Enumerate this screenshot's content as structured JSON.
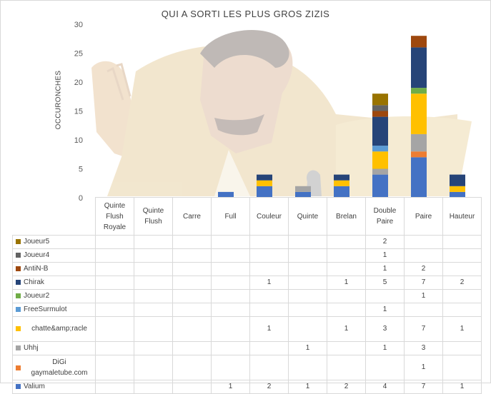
{
  "chart_data": {
    "type": "bar",
    "stacked": true,
    "title": "QUI A SORTI LES PLUS GROS ZIZIS",
    "ylabel": "OCCURONCHES",
    "ylim": [
      0,
      30
    ],
    "yticks": [
      0,
      5,
      10,
      15,
      20,
      25,
      30
    ],
    "grid": false,
    "legend": "data-table",
    "categories": [
      "Quinte Flush Royale",
      "Quinte Flush",
      "Carre",
      "Full",
      "Couleur",
      "Quinte",
      "Brelan",
      "Double Paire",
      "Paire",
      "Hauteur"
    ],
    "series": [
      {
        "name": "Valium",
        "color": "#4472c4",
        "values": [
          null,
          null,
          null,
          1,
          2,
          1,
          2,
          4,
          7,
          1
        ]
      },
      {
        "name": "DiGi gaymaletube.com",
        "color": "#ed7d31",
        "values": [
          null,
          null,
          null,
          null,
          null,
          null,
          null,
          null,
          1,
          null
        ]
      },
      {
        "name": "Uhhj",
        "color": "#a5a5a5",
        "values": [
          null,
          null,
          null,
          null,
          null,
          1,
          null,
          1,
          3,
          null
        ]
      },
      {
        "name": "chatte&amp;racle",
        "color": "#ffc000",
        "values": [
          null,
          null,
          null,
          null,
          1,
          null,
          1,
          3,
          7,
          1
        ]
      },
      {
        "name": "FreeSurmulot",
        "color": "#5b9bd5",
        "values": [
          null,
          null,
          null,
          null,
          null,
          null,
          null,
          1,
          null,
          null
        ]
      },
      {
        "name": "Joueur2",
        "color": "#70ad47",
        "values": [
          null,
          null,
          null,
          null,
          null,
          null,
          null,
          null,
          1,
          null
        ]
      },
      {
        "name": "Chirak",
        "color": "#264478",
        "values": [
          null,
          null,
          null,
          null,
          1,
          null,
          1,
          5,
          7,
          2
        ]
      },
      {
        "name": "AntiN-B",
        "color": "#9e480e",
        "values": [
          null,
          null,
          null,
          null,
          null,
          null,
          null,
          1,
          2,
          null
        ]
      },
      {
        "name": "Joueur4",
        "color": "#636363",
        "values": [
          null,
          null,
          null,
          null,
          null,
          null,
          null,
          1,
          null,
          null
        ]
      },
      {
        "name": "Joueur5",
        "color": "#997300",
        "values": [
          null,
          null,
          null,
          null,
          null,
          null,
          null,
          2,
          null,
          null
        ]
      }
    ]
  }
}
